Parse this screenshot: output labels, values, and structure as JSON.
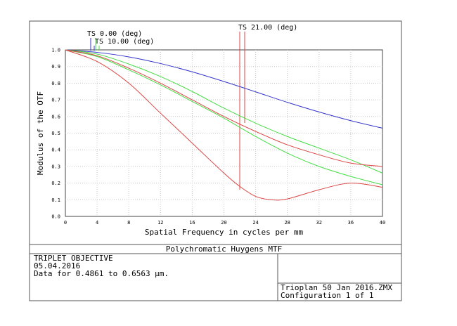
{
  "chart_data": {
    "type": "line",
    "title": "Polychromatic Huygens MTF",
    "xlabel": "Spatial Frequency in cycles per mm",
    "ylabel": "Modulus of the OTF",
    "xlim": [
      0,
      40
    ],
    "ylim": [
      0,
      1
    ],
    "xticks": [
      "0",
      "4",
      "8",
      "12",
      "16",
      "20",
      "24",
      "28",
      "32",
      "36",
      "40"
    ],
    "yticks": [
      "0.0",
      "0.1",
      "0.2",
      "0.3",
      "0.4",
      "0.5",
      "0.6",
      "0.7",
      "0.8",
      "0.9",
      "1.0"
    ],
    "grid": true,
    "field_labels": [
      "TS 0.00 (deg)",
      "TS 10.00 (deg)",
      "TS 21.00 (deg)"
    ],
    "series": [
      {
        "color": "#3333cc",
        "x": [
          0,
          4,
          8,
          12,
          16,
          20,
          24,
          28,
          32,
          36,
          40
        ],
        "values": [
          1.0,
          0.985,
          0.958,
          0.918,
          0.868,
          0.81,
          0.748,
          0.685,
          0.627,
          0.575,
          0.53
        ]
      },
      {
        "color": "#44dd44",
        "x": [
          0,
          4,
          8,
          12,
          16,
          20,
          24,
          28,
          32,
          36,
          40
        ],
        "values": [
          1.0,
          0.975,
          0.915,
          0.84,
          0.75,
          0.65,
          0.56,
          0.48,
          0.41,
          0.34,
          0.26
        ]
      },
      {
        "color": "#44dd44",
        "x": [
          0,
          4,
          8,
          12,
          16,
          20,
          24,
          28,
          32,
          36,
          40
        ],
        "values": [
          1.0,
          0.96,
          0.88,
          0.79,
          0.69,
          0.59,
          0.48,
          0.38,
          0.3,
          0.24,
          0.19
        ]
      },
      {
        "color": "#dd4444",
        "x": [
          0,
          4,
          8,
          12,
          16,
          20,
          24,
          28,
          32,
          36,
          40
        ],
        "values": [
          1.0,
          0.965,
          0.89,
          0.8,
          0.7,
          0.6,
          0.51,
          0.43,
          0.37,
          0.32,
          0.3
        ]
      },
      {
        "color": "#dd4444",
        "x": [
          0,
          4,
          8,
          12,
          16,
          20,
          22,
          24,
          26,
          28,
          32,
          36,
          40
        ],
        "values": [
          1.0,
          0.93,
          0.8,
          0.62,
          0.44,
          0.26,
          0.18,
          0.12,
          0.1,
          0.105,
          0.16,
          0.2,
          0.175
        ]
      }
    ]
  },
  "info": {
    "lens_title": "TRIPLET OBJECTIVE",
    "date": "05.04.2016",
    "wavelength_range": "Data for 0.4861 to 0.6563 µm.",
    "file_name": "Trioplan 50 Jan 2016.ZMX",
    "configuration": "Configuration 1 of 1"
  },
  "colors": {
    "blue": "#3333cc",
    "green": "#44dd44",
    "red": "#dd4444",
    "grid": "#c8c8c8",
    "frame": "#333333"
  }
}
